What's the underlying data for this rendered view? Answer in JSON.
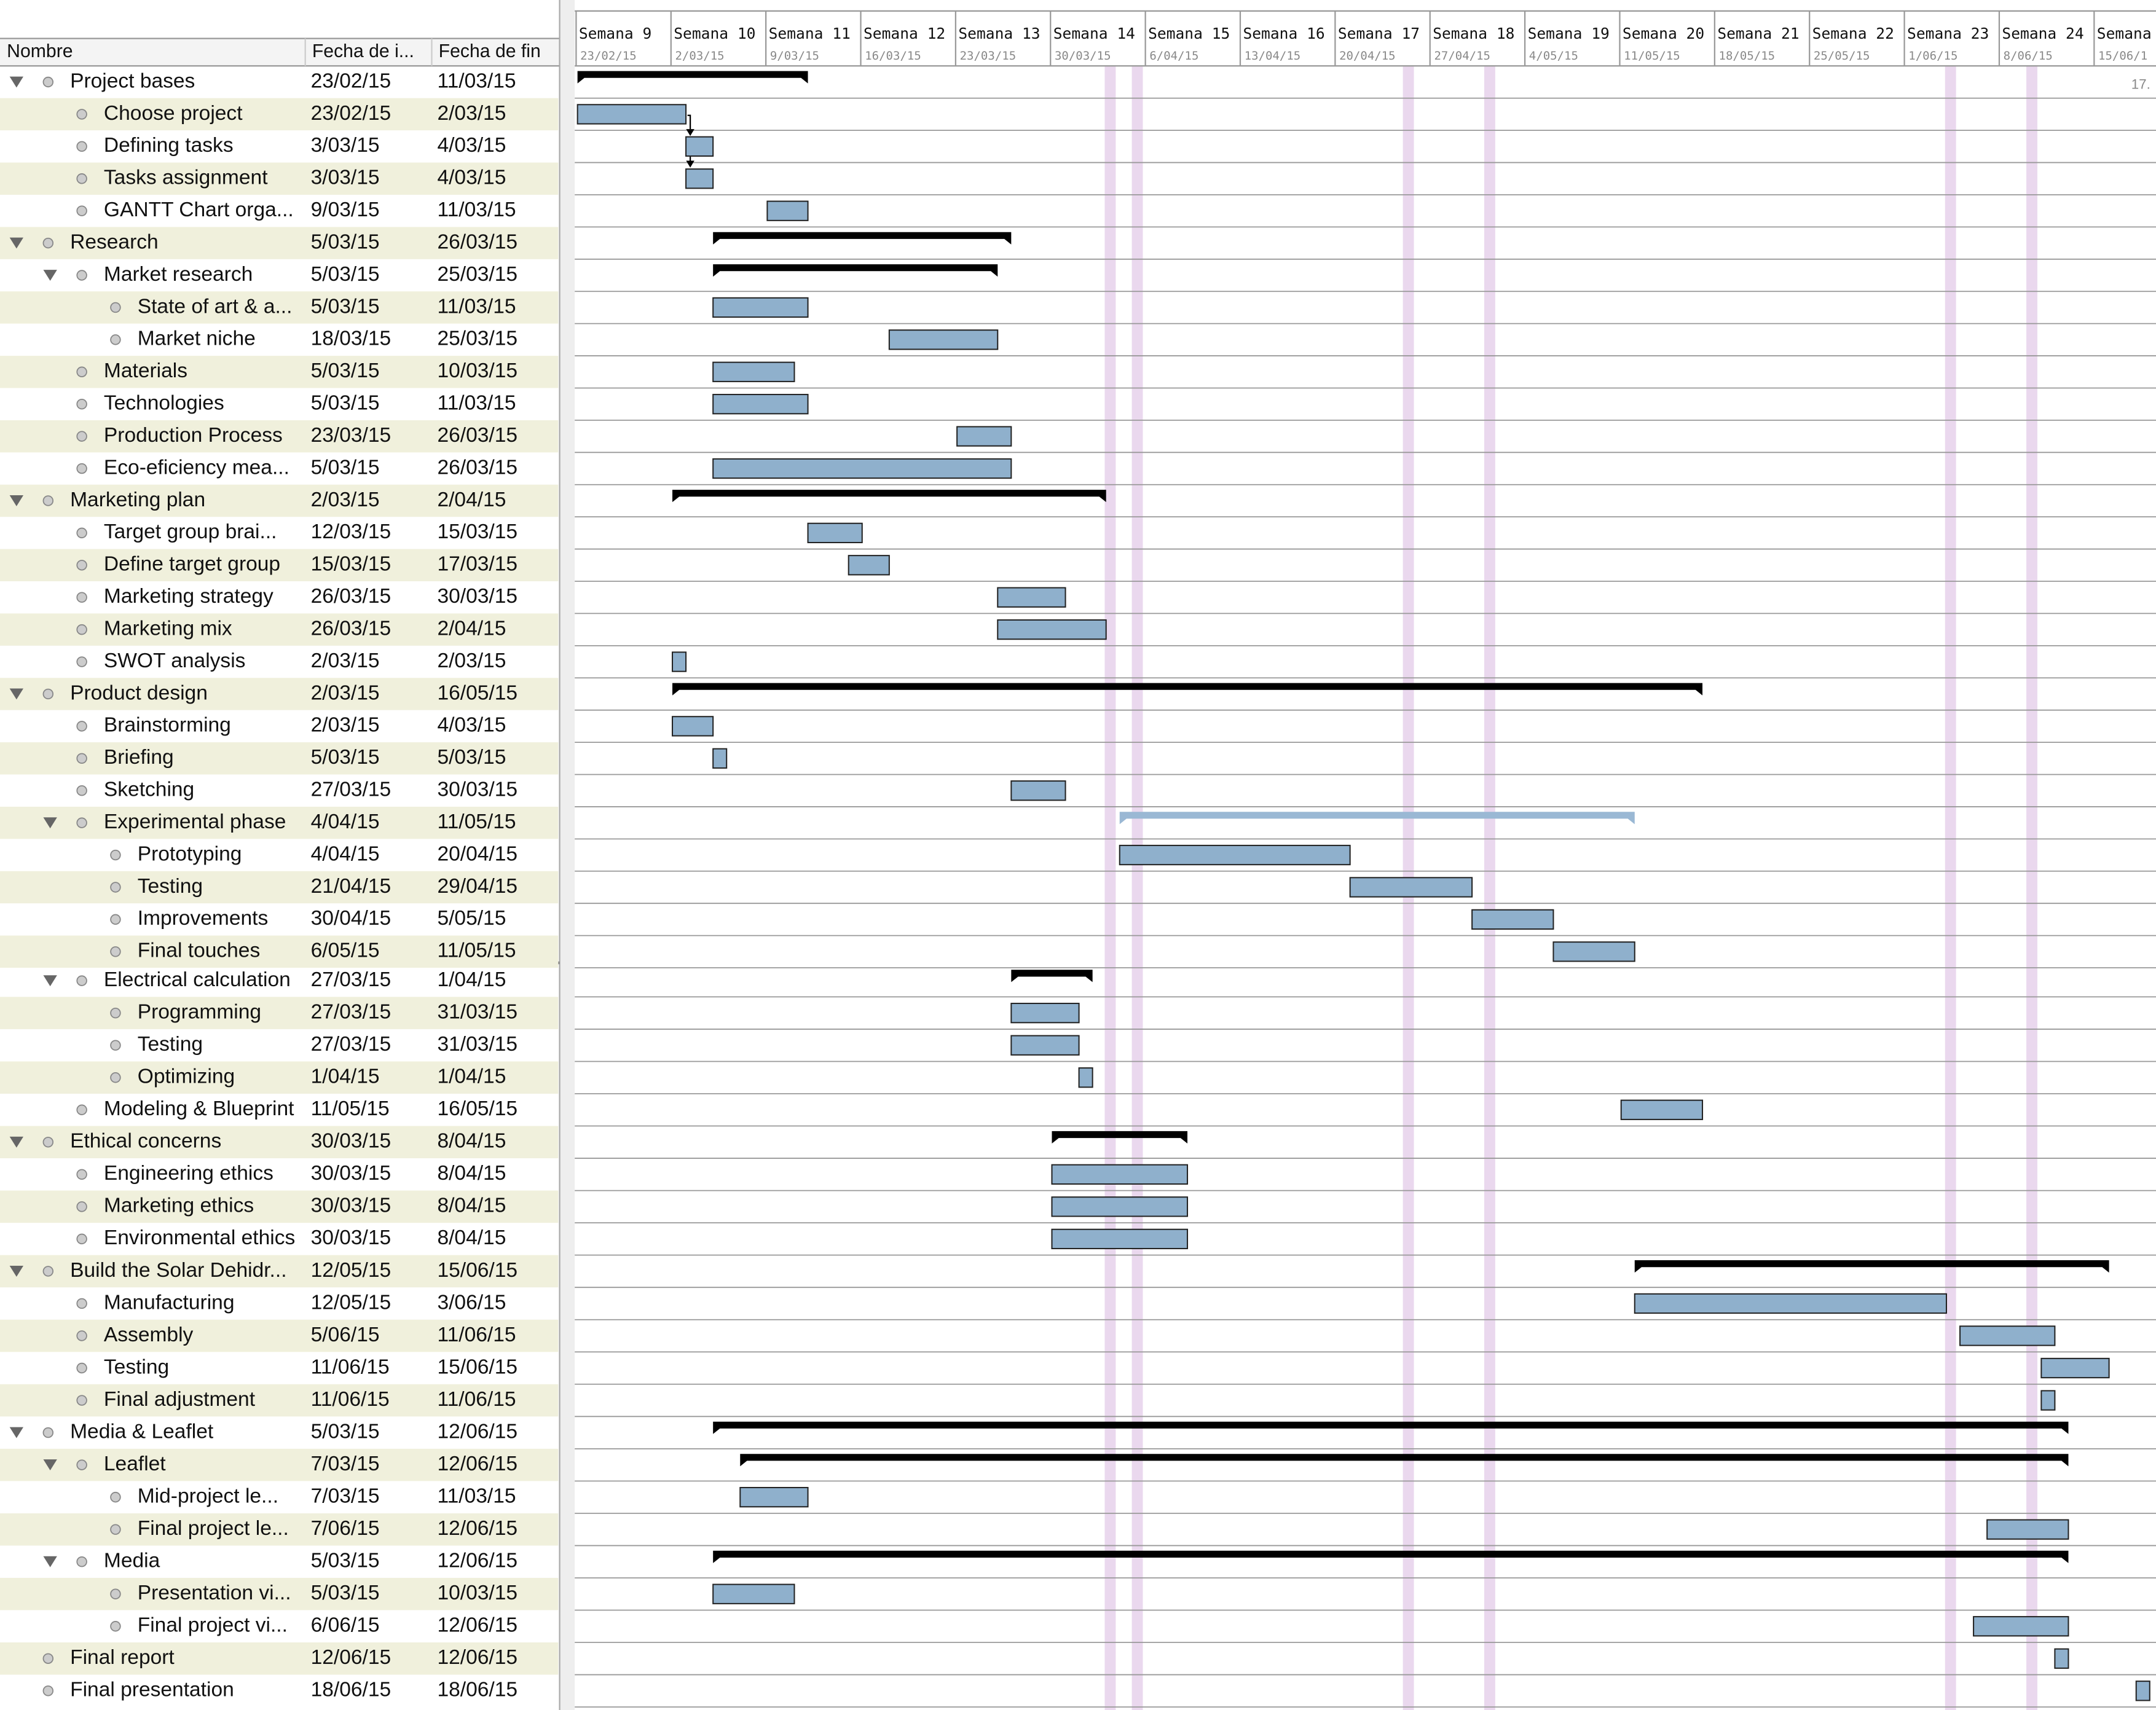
{
  "table": {
    "headers": [
      "Nombre",
      "Fecha de i...",
      "Fecha de fin"
    ]
  },
  "timeline": {
    "weeks": [
      {
        "label": "Semana 9",
        "date": "23/02/15"
      },
      {
        "label": "Semana 10",
        "date": "2/03/15"
      },
      {
        "label": "Semana 11",
        "date": "9/03/15"
      },
      {
        "label": "Semana 12",
        "date": "16/03/15"
      },
      {
        "label": "Semana 13",
        "date": "23/03/15"
      },
      {
        "label": "Semana 14",
        "date": "30/03/15"
      },
      {
        "label": "Semana 15",
        "date": "6/04/15"
      },
      {
        "label": "Semana 16",
        "date": "13/04/15"
      },
      {
        "label": "Semana 17",
        "date": "20/04/15"
      },
      {
        "label": "Semana 18",
        "date": "27/04/15"
      },
      {
        "label": "Semana 19",
        "date": "4/05/15"
      },
      {
        "label": "Semana 20",
        "date": "11/05/15"
      },
      {
        "label": "Semana 21",
        "date": "18/05/15"
      },
      {
        "label": "Semana 22",
        "date": "25/05/15"
      },
      {
        "label": "Semana 23",
        "date": "1/06/15"
      },
      {
        "label": "Semana 24",
        "date": "8/06/15"
      },
      {
        "label": "Semana",
        "date": "15/06/1"
      }
    ],
    "overflow_label": "17.",
    "task_color": "#8fb0cc",
    "group_color": "#000000",
    "holiday_color": "#ead8ee"
  },
  "panes": [
    {
      "rows": [
        {
          "name": "Project bases",
          "start": "23/02/15",
          "end": "11/03/15",
          "depth": 0,
          "kind": "group"
        },
        {
          "name": "Choose project",
          "start": "23/02/15",
          "end": "2/03/15",
          "depth": 1,
          "kind": "task"
        },
        {
          "name": "Defining tasks",
          "start": "3/03/15",
          "end": "4/03/15",
          "depth": 1,
          "kind": "task"
        },
        {
          "name": "Tasks assignment",
          "start": "3/03/15",
          "end": "4/03/15",
          "depth": 1,
          "kind": "task"
        },
        {
          "name": "GANTT Chart orga...",
          "start": "9/03/15",
          "end": "11/03/15",
          "depth": 1,
          "kind": "task"
        },
        {
          "name": "Research",
          "start": "5/03/15",
          "end": "26/03/15",
          "depth": 0,
          "kind": "group"
        },
        {
          "name": "Market research",
          "start": "5/03/15",
          "end": "25/03/15",
          "depth": 1,
          "kind": "group"
        },
        {
          "name": "State of art & a...",
          "start": "5/03/15",
          "end": "11/03/15",
          "depth": 2,
          "kind": "task"
        },
        {
          "name": "Market niche",
          "start": "18/03/15",
          "end": "25/03/15",
          "depth": 2,
          "kind": "task"
        },
        {
          "name": "Materials",
          "start": "5/03/15",
          "end": "10/03/15",
          "depth": 1,
          "kind": "task"
        },
        {
          "name": "Technologies",
          "start": "5/03/15",
          "end": "11/03/15",
          "depth": 1,
          "kind": "task"
        },
        {
          "name": "Production Process",
          "start": "23/03/15",
          "end": "26/03/15",
          "depth": 1,
          "kind": "task"
        },
        {
          "name": "Eco-eficiency mea...",
          "start": "5/03/15",
          "end": "26/03/15",
          "depth": 1,
          "kind": "task"
        },
        {
          "name": "Marketing plan",
          "start": "2/03/15",
          "end": "2/04/15",
          "depth": 0,
          "kind": "group"
        },
        {
          "name": "Target group brai...",
          "start": "12/03/15",
          "end": "15/03/15",
          "depth": 1,
          "kind": "task"
        },
        {
          "name": "Define target group",
          "start": "15/03/15",
          "end": "17/03/15",
          "depth": 1,
          "kind": "task"
        },
        {
          "name": "Marketing strategy",
          "start": "26/03/15",
          "end": "30/03/15",
          "depth": 1,
          "kind": "task"
        },
        {
          "name": "Marketing mix",
          "start": "26/03/15",
          "end": "2/04/15",
          "depth": 1,
          "kind": "task"
        },
        {
          "name": "SWOT analysis",
          "start": "2/03/15",
          "end": "2/03/15",
          "depth": 1,
          "kind": "task"
        },
        {
          "name": "Product design",
          "start": "2/03/15",
          "end": "16/05/15",
          "depth": 0,
          "kind": "group"
        },
        {
          "name": "Brainstorming",
          "start": "2/03/15",
          "end": "4/03/15",
          "depth": 1,
          "kind": "task"
        },
        {
          "name": "Briefing",
          "start": "5/03/15",
          "end": "5/03/15",
          "depth": 1,
          "kind": "task"
        },
        {
          "name": "Sketching",
          "start": "27/03/15",
          "end": "30/03/15",
          "depth": 1,
          "kind": "task"
        },
        {
          "name": "Experimental phase",
          "start": "4/04/15",
          "end": "11/05/15",
          "depth": 1,
          "kind": "group",
          "color": "#9ab8d4"
        },
        {
          "name": "Prototyping",
          "start": "4/04/15",
          "end": "20/04/15",
          "depth": 2,
          "kind": "task"
        },
        {
          "name": "Testing",
          "start": "21/04/15",
          "end": "29/04/15",
          "depth": 2,
          "kind": "task"
        },
        {
          "name": "Improvements",
          "start": "30/04/15",
          "end": "5/05/15",
          "depth": 2,
          "kind": "task"
        },
        {
          "name": "Final touches",
          "start": "6/05/15",
          "end": "11/05/15",
          "depth": 2,
          "kind": "task"
        }
      ]
    },
    {
      "rows": [
        {
          "name": "Electrical calculation",
          "start": "27/03/15",
          "end": "1/04/15",
          "depth": 1,
          "kind": "group"
        },
        {
          "name": "Programming",
          "start": "27/03/15",
          "end": "31/03/15",
          "depth": 2,
          "kind": "task"
        },
        {
          "name": "Testing",
          "start": "27/03/15",
          "end": "31/03/15",
          "depth": 2,
          "kind": "task"
        },
        {
          "name": "Optimizing",
          "start": "1/04/15",
          "end": "1/04/15",
          "depth": 2,
          "kind": "task"
        },
        {
          "name": "Modeling & Blueprint",
          "start": "11/05/15",
          "end": "16/05/15",
          "depth": 1,
          "kind": "task"
        },
        {
          "name": "Ethical concerns",
          "start": "30/03/15",
          "end": "8/04/15",
          "depth": 0,
          "kind": "group"
        },
        {
          "name": "Engineering ethics",
          "start": "30/03/15",
          "end": "8/04/15",
          "depth": 1,
          "kind": "task"
        },
        {
          "name": "Marketing ethics",
          "start": "30/03/15",
          "end": "8/04/15",
          "depth": 1,
          "kind": "task"
        },
        {
          "name": "Environmental ethics",
          "start": "30/03/15",
          "end": "8/04/15",
          "depth": 1,
          "kind": "task"
        },
        {
          "name": "Build the Solar Dehidr...",
          "start": "12/05/15",
          "end": "15/06/15",
          "depth": 0,
          "kind": "group"
        },
        {
          "name": "Manufacturing",
          "start": "12/05/15",
          "end": "3/06/15",
          "depth": 1,
          "kind": "task"
        },
        {
          "name": "Assembly",
          "start": "5/06/15",
          "end": "11/06/15",
          "depth": 1,
          "kind": "task"
        },
        {
          "name": "Testing",
          "start": "11/06/15",
          "end": "15/06/15",
          "depth": 1,
          "kind": "task"
        },
        {
          "name": "Final adjustment",
          "start": "11/06/15",
          "end": "11/06/15",
          "depth": 1,
          "kind": "task"
        },
        {
          "name": "Media & Leaflet",
          "start": "5/03/15",
          "end": "12/06/15",
          "depth": 0,
          "kind": "group"
        },
        {
          "name": "Leaflet",
          "start": "7/03/15",
          "end": "12/06/15",
          "depth": 1,
          "kind": "group"
        },
        {
          "name": "Mid-project le...",
          "start": "7/03/15",
          "end": "11/03/15",
          "depth": 2,
          "kind": "task"
        },
        {
          "name": "Final project le...",
          "start": "7/06/15",
          "end": "12/06/15",
          "depth": 2,
          "kind": "task"
        },
        {
          "name": "Media",
          "start": "5/03/15",
          "end": "12/06/15",
          "depth": 1,
          "kind": "group"
        },
        {
          "name": "Presentation vi...",
          "start": "5/03/15",
          "end": "10/03/15",
          "depth": 2,
          "kind": "task"
        },
        {
          "name": "Final project vi...",
          "start": "6/06/15",
          "end": "12/06/15",
          "depth": 2,
          "kind": "task"
        },
        {
          "name": "Final report",
          "start": "12/06/15",
          "end": "12/06/15",
          "depth": 0,
          "kind": "task"
        },
        {
          "name": "Final presentation",
          "start": "18/06/15",
          "end": "18/06/15",
          "depth": 0,
          "kind": "task"
        }
      ]
    }
  ]
}
